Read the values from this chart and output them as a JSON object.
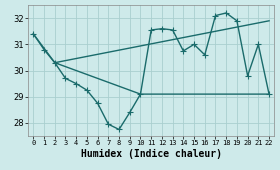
{
  "xlabel": "Humidex (Indice chaleur)",
  "bg_color": "#ceeaea",
  "grid_color": "#aacfcf",
  "line_color": "#1a6b6b",
  "line1_x": [
    0,
    1,
    2,
    3,
    4,
    5,
    6,
    7,
    8,
    9,
    10,
    11,
    12,
    13,
    14,
    15,
    16,
    17,
    18,
    19,
    20,
    21,
    22
  ],
  "line1_y": [
    31.4,
    30.8,
    30.3,
    29.7,
    29.5,
    29.25,
    28.75,
    27.95,
    27.75,
    28.4,
    29.1,
    31.55,
    31.6,
    31.55,
    30.75,
    31.0,
    30.6,
    32.1,
    32.2,
    31.9,
    29.8,
    31.0,
    29.1
  ],
  "line2_x": [
    0,
    2,
    22
  ],
  "line2_y": [
    31.4,
    30.3,
    31.9
  ],
  "line3_x": [
    2,
    10,
    22
  ],
  "line3_y": [
    30.3,
    29.1,
    29.1
  ],
  "ylim": [
    27.5,
    32.5
  ],
  "xlim": [
    -0.5,
    22.5
  ],
  "yticks": [
    28,
    29,
    30,
    31,
    32
  ],
  "xticks": [
    0,
    1,
    2,
    3,
    4,
    5,
    6,
    7,
    8,
    9,
    10,
    11,
    12,
    13,
    14,
    15,
    16,
    17,
    18,
    19,
    20,
    21,
    22
  ],
  "markersize": 2.5,
  "linewidth": 1.0,
  "fontsize_label": 7,
  "fontsize_tick": 6
}
